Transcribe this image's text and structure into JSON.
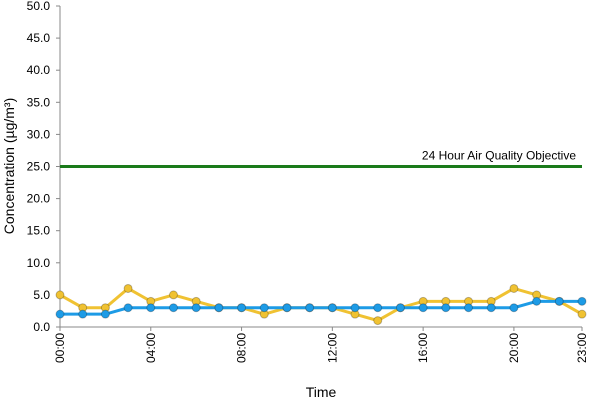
{
  "chart_data": {
    "type": "line",
    "x_label": "Time",
    "y_label": "Concentration (µg/m³)",
    "categories": [
      "00:00",
      null,
      null,
      null,
      "04:00",
      null,
      null,
      null,
      "08:00",
      null,
      null,
      null,
      "12:00",
      null,
      null,
      null,
      "16:00",
      null,
      null,
      null,
      "20:00",
      null,
      null,
      "23:00"
    ],
    "series": [
      {
        "color": "#f0c232",
        "values": [
          5,
          3,
          3,
          6,
          4,
          5,
          4,
          3,
          3,
          2,
          3,
          3,
          3,
          2,
          1,
          3,
          4,
          4,
          4,
          4,
          6,
          5,
          4,
          2
        ]
      },
      {
        "color": "#1d9be6",
        "values": [
          2,
          2,
          2,
          3,
          3,
          3,
          3,
          3,
          3,
          3,
          3,
          3,
          3,
          3,
          3,
          3,
          3,
          3,
          3,
          3,
          3,
          4,
          4,
          4
        ]
      }
    ],
    "reference_line": {
      "value": 25,
      "label": "24 Hour Air Quality Objective",
      "color": "#1a7a1a"
    },
    "ylim": [
      0,
      50
    ],
    "yticks": [
      {
        "value": 0,
        "label": "0.0"
      },
      {
        "value": 5,
        "label": "5.0"
      },
      {
        "value": 10,
        "label": "10.0"
      },
      {
        "value": 15,
        "label": "15.0"
      },
      {
        "value": 20,
        "label": "20.0"
      },
      {
        "value": 25,
        "label": "25.0"
      },
      {
        "value": 30,
        "label": "30.0"
      },
      {
        "value": 35,
        "label": "35.0"
      },
      {
        "value": 40,
        "label": "40.0"
      },
      {
        "value": 45,
        "label": "45.0"
      },
      {
        "value": 50,
        "label": "50.0"
      }
    ]
  }
}
